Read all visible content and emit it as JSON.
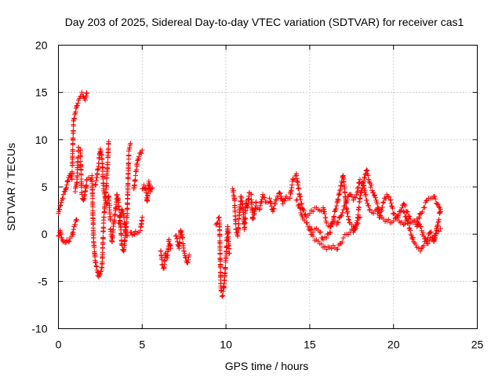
{
  "chart_data": {
    "type": "scatter",
    "title": "Day 203 of 2025, Sidereal Day-to-day VTEC variation (SDTVAR) for receiver cas1",
    "xlabel": "GPS time / hours",
    "ylabel": "SDTVAR / TECUs",
    "xlim": [
      0,
      25
    ],
    "ylim": [
      -10,
      20
    ],
    "xticks": [
      0,
      5,
      10,
      15,
      20,
      25
    ],
    "yticks": [
      -10,
      -5,
      0,
      5,
      10,
      15,
      20
    ],
    "grid": true,
    "marker": "+",
    "color": "#ff0000",
    "segments": [
      {
        "x": [
          0.0,
          0.1,
          0.2,
          0.3,
          0.4,
          0.5,
          0.6,
          0.7,
          0.8,
          0.9,
          1.0,
          1.1,
          1.2,
          1.3,
          1.4,
          1.5,
          1.6,
          1.7
        ],
        "y": [
          2.2,
          3.0,
          3.6,
          4.2,
          4.5,
          5.2,
          6.0,
          6.4,
          5.8,
          12.0,
          12.8,
          13.6,
          14.2,
          14.6,
          15.0,
          14.6,
          14.2,
          14.9
        ]
      },
      {
        "x": [
          0.0,
          0.1,
          0.2,
          0.3,
          0.4,
          0.5,
          0.6,
          0.7,
          0.8,
          0.9,
          1.0,
          1.1
        ],
        "y": [
          -0.2,
          0.4,
          -0.5,
          -0.8,
          -0.9,
          -0.6,
          -0.8,
          -0.4,
          -0.2,
          0.5,
          1.0,
          1.5
        ]
      },
      {
        "x": [
          1.0,
          1.1,
          1.2,
          1.3,
          1.4,
          1.5,
          1.6,
          1.7
        ],
        "y": [
          4.5,
          5.5,
          9.2,
          9.0,
          4.2,
          3.6,
          4.5,
          5.8
        ]
      },
      {
        "x": [
          1.8,
          1.9,
          2.0,
          2.1,
          2.2,
          2.3,
          2.4,
          2.5,
          2.6,
          2.7,
          2.8,
          2.9,
          3.0
        ],
        "y": [
          6.0,
          5.8,
          6.2,
          -0.8,
          -3.0,
          -3.8,
          -4.5,
          -4.2,
          -3.5,
          1.5,
          3.6,
          6.4,
          9.8
        ]
      },
      {
        "x": [
          2.2,
          2.3,
          2.4,
          2.5,
          2.6,
          2.7,
          2.8,
          2.9,
          3.0,
          3.1
        ],
        "y": [
          5.2,
          6.0,
          7.5,
          9.0,
          8.0,
          4.6,
          3.8,
          3.2,
          4.0,
          1.5
        ]
      },
      {
        "x": [
          3.1,
          3.2,
          3.3,
          3.4,
          3.5,
          3.6,
          3.7,
          3.8,
          3.9,
          4.0,
          4.1,
          4.2,
          4.3
        ],
        "y": [
          0.5,
          -0.8,
          1.2,
          2.5,
          4.2,
          3.0,
          1.0,
          -1.2,
          -1.8,
          0.2,
          2.0,
          8.8,
          9.6
        ]
      },
      {
        "x": [
          3.6,
          3.7,
          3.8,
          3.9,
          4.0,
          4.1
        ],
        "y": [
          1.2,
          2.0,
          2.6,
          1.8,
          0.5,
          -0.2
        ]
      },
      {
        "x": [
          4.3,
          4.4,
          4.5,
          4.6,
          4.7,
          4.8,
          4.9,
          5.0
        ],
        "y": [
          0.2,
          -0.1,
          0.0,
          0.3,
          0.1,
          0.2,
          0.4,
          1.8
        ]
      },
      {
        "x": [
          4.5,
          4.6,
          4.7,
          4.8,
          4.9,
          5.0
        ],
        "y": [
          4.8,
          6.2,
          7.5,
          8.2,
          8.6,
          8.9
        ]
      },
      {
        "x": [
          5.0,
          5.1,
          5.2,
          5.3,
          5.4,
          5.5,
          5.6
        ],
        "y": [
          4.8,
          5.2,
          4.9,
          3.5,
          5.6,
          4.5,
          4.9
        ]
      },
      {
        "x": [
          6.1,
          6.2,
          6.3,
          6.4,
          6.5,
          6.6,
          6.7
        ],
        "y": [
          -1.8,
          -3.2,
          -3.6,
          -2.0,
          -2.5,
          -0.6,
          -1.5
        ]
      },
      {
        "x": [
          7.0,
          7.1,
          7.2,
          7.3,
          7.4,
          7.5,
          7.6,
          7.7,
          7.8
        ],
        "y": [
          -0.2,
          -0.8,
          -1.5,
          0.4,
          -0.4,
          -1.8,
          -2.5,
          -3.0,
          -2.2
        ]
      },
      {
        "x": [
          9.4,
          9.6,
          9.7,
          9.8,
          9.9,
          10.0,
          10.1,
          10.2
        ],
        "y": [
          1.0,
          1.8,
          -6.0,
          -6.5,
          -5.2,
          -2.5,
          0.8,
          -2.0
        ]
      },
      {
        "x": [
          10.4,
          10.5,
          10.6,
          10.7,
          10.8,
          10.9,
          11.0,
          11.1,
          11.2,
          11.3,
          11.4,
          11.5,
          11.6,
          11.7,
          11.8
        ],
        "y": [
          4.8,
          3.8,
          0.5,
          -0.2,
          2.0,
          4.0,
          3.2,
          0.5,
          3.5,
          2.8,
          4.4,
          4.2,
          1.6,
          2.2,
          3.4
        ]
      },
      {
        "x": [
          11.8,
          12.0,
          12.2,
          12.4,
          12.6,
          12.8,
          13.0,
          13.2,
          13.4,
          13.6,
          13.8,
          14.0,
          14.2,
          14.4,
          14.6,
          14.8,
          15.0,
          15.2,
          15.4,
          15.6,
          15.8,
          16.0,
          16.2,
          16.4,
          16.6,
          16.8,
          17.0,
          17.2,
          17.4,
          17.6,
          17.8,
          18.0,
          18.2,
          18.4,
          18.6,
          18.8,
          19.0,
          19.2,
          19.4,
          19.6,
          19.8,
          20.0,
          20.2,
          20.4,
          20.6,
          20.8,
          21.0,
          21.2,
          21.4,
          21.6,
          21.8,
          22.0,
          22.2,
          22.4,
          22.6,
          22.8
        ],
        "y": [
          3.0,
          2.6,
          4.2,
          3.4,
          3.8,
          2.4,
          3.6,
          4.4,
          3.2,
          4.0,
          3.8,
          5.8,
          6.4,
          4.0,
          2.6,
          1.8,
          2.2,
          2.4,
          2.8,
          2.5,
          2.8,
          1.2,
          0.8,
          1.4,
          1.0,
          1.8,
          2.6,
          3.4,
          4.2,
          3.6,
          4.2,
          5.8,
          5.2,
          3.6,
          2.6,
          2.2,
          2.6,
          1.8,
          1.6,
          1.4,
          1.2,
          1.4,
          1.8,
          1.2,
          1.0,
          1.6,
          1.2,
          1.4,
          0.8,
          2.2,
          2.8,
          3.6,
          3.8,
          4.0,
          3.2,
          2.4
        ]
      },
      {
        "x": [
          14.2,
          14.4,
          14.6,
          14.8,
          15.0,
          15.2,
          15.4,
          15.6,
          15.8,
          16.0,
          16.2,
          16.4,
          16.6,
          16.8,
          17.0,
          17.2,
          17.4,
          17.6,
          17.8,
          18.0
        ],
        "y": [
          3.6,
          2.8,
          1.6,
          1.2,
          0.4,
          -0.2,
          -0.6,
          -1.0,
          -1.4,
          -1.6,
          -1.4,
          -1.2,
          -1.6,
          -1.0,
          -0.4,
          0.0,
          0.2,
          0.4,
          1.2,
          1.8
        ]
      },
      {
        "x": [
          15.0,
          15.2,
          15.4,
          15.6,
          15.8,
          16.0,
          16.2,
          16.4,
          16.6,
          16.8,
          17.0,
          17.2,
          17.4,
          17.6
        ],
        "y": [
          0.8,
          0.2,
          0.6,
          0.2,
          -0.6,
          -0.4,
          0.2,
          1.6,
          3.0,
          4.6,
          6.2,
          2.6,
          1.2,
          0.8
        ]
      },
      {
        "x": [
          17.6,
          17.8,
          18.0,
          18.2,
          18.4,
          18.6,
          18.8,
          19.0,
          19.2,
          19.4,
          19.6,
          19.8,
          20.0,
          20.2,
          20.4,
          20.6,
          20.8,
          21.0
        ],
        "y": [
          0.2,
          1.0,
          3.8,
          5.4,
          6.8,
          5.4,
          4.4,
          3.4,
          2.0,
          3.4,
          4.2,
          3.6,
          2.2,
          1.6,
          2.4,
          3.2,
          2.4,
          1.6
        ]
      },
      {
        "x": [
          20.6,
          20.8,
          21.0,
          21.2,
          21.4,
          21.6,
          21.8,
          22.0,
          22.2,
          22.4,
          22.6,
          22.8
        ],
        "y": [
          2.4,
          1.6,
          0.4,
          -0.8,
          -1.4,
          -1.8,
          -1.2,
          -0.6,
          0.2,
          -0.6,
          0.4,
          0.6
        ]
      },
      {
        "x": [
          21.4,
          21.6,
          21.8,
          22.0,
          22.2,
          22.4,
          22.6,
          22.8
        ],
        "y": [
          1.6,
          0.8,
          -0.2,
          -1.0,
          -0.4,
          -0.8,
          0.8,
          2.6
        ]
      }
    ]
  }
}
